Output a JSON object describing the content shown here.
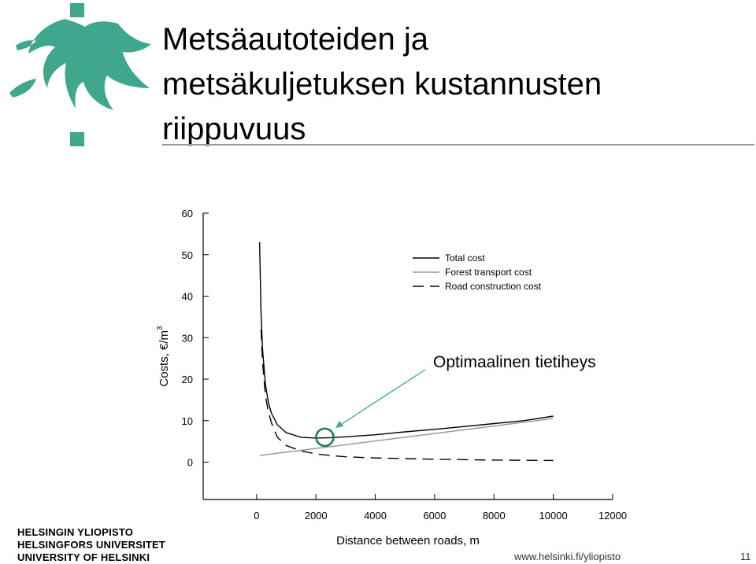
{
  "slide": {
    "title_lines": [
      "Metsäautoteiden ja",
      "metsäkuljetuksen kustannusten",
      "riippuvuus"
    ],
    "footer_university": [
      "HELSINGIN YLIOPISTO",
      "HELSINGFORS UNIVERSITET",
      "UNIVERSITY OF HELSINKI"
    ],
    "footer_url": "www.helsinki.fi/yliopisto",
    "page_number": "11"
  },
  "colors": {
    "brand_green": "#3fa78c",
    "total": "#000000",
    "transport": "#999999",
    "road": "#000000",
    "marker": "#1f7a5a",
    "arrow": "#3fa78c"
  },
  "chart_data": {
    "type": "line",
    "title": "",
    "xlabel": "Distance between roads, m",
    "ylabel": "Costs, €/m",
    "ylabel_superscript": "3",
    "xlim": [
      -1800,
      12000
    ],
    "ylim": [
      -9,
      60
    ],
    "x_ticks": [
      0,
      2000,
      4000,
      6000,
      8000,
      10000,
      12000
    ],
    "x_tick_labels": [
      "0",
      "2000",
      "4000",
      "6000",
      "8000",
      "10000",
      "12000"
    ],
    "y_ticks": [
      0,
      10,
      20,
      30,
      40,
      50,
      60
    ],
    "y_tick_labels": [
      "0",
      "10",
      "20",
      "30",
      "40",
      "50",
      "60"
    ],
    "grid": false,
    "legend_position": "top-right",
    "series": [
      {
        "name": "Total cost",
        "style": "solid",
        "x": [
          100,
          150,
          200,
          300,
          400,
          500,
          700,
          1000,
          1500,
          2000,
          2500,
          3000,
          4000,
          5000,
          6000,
          7000,
          8000,
          9000,
          10000
        ],
        "y": [
          53.0,
          35.8,
          27.2,
          18.6,
          14.3,
          11.8,
          9.0,
          7.1,
          6.0,
          5.8,
          5.9,
          6.1,
          6.6,
          7.3,
          7.9,
          8.6,
          9.3,
          10.0,
          11.1
        ]
      },
      {
        "name": "Forest transport cost",
        "style": "solid",
        "x": [
          100,
          10000
        ],
        "y": [
          1.6,
          10.5
        ]
      },
      {
        "name": "Road construction cost",
        "style": "dashed",
        "x": [
          150,
          200,
          300,
          400,
          500,
          700,
          1000,
          1500,
          2000,
          2500,
          3000,
          4000,
          6000,
          8000,
          10000
        ],
        "y": [
          32.0,
          24.0,
          16.0,
          12.0,
          9.5,
          6.0,
          4.0,
          2.7,
          2.0,
          1.6,
          1.3,
          1.0,
          0.7,
          0.5,
          0.4
        ]
      }
    ],
    "annotations": [
      {
        "text": "Optimaalinen tietiheys",
        "points_to_x": 2300,
        "points_to_y": 6.0
      }
    ]
  }
}
